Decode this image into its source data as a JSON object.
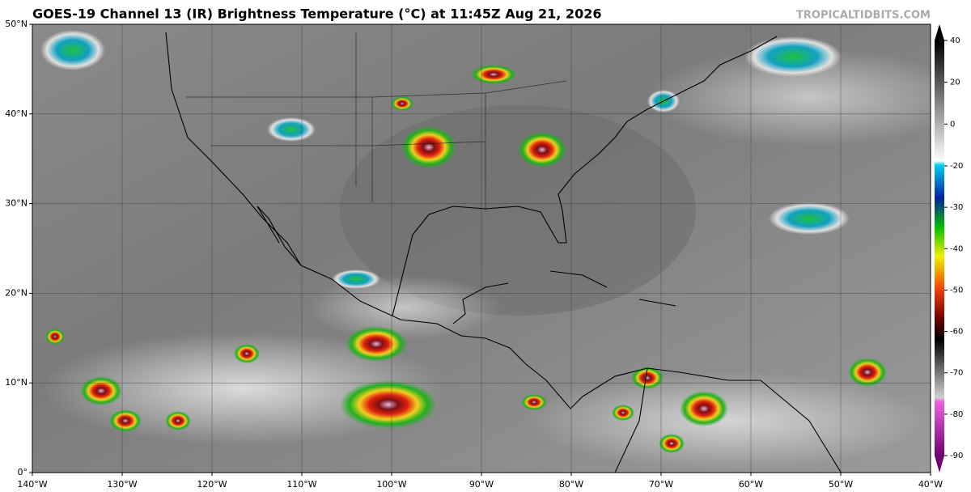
{
  "header": {
    "title": "GOES-19 Channel 13 (IR) Brightness Temperature (°C) at 11:45Z Aug 21, 2026",
    "source": "TROPICALTIDBITS.COM"
  },
  "map": {
    "lon_range": [
      -140,
      -40
    ],
    "lat_range": [
      0,
      50
    ],
    "lon_ticks": [
      {
        "value": -140,
        "label": "140°W"
      },
      {
        "value": -130,
        "label": "130°W"
      },
      {
        "value": -120,
        "label": "120°W"
      },
      {
        "value": -110,
        "label": "110°W"
      },
      {
        "value": -100,
        "label": "100°W"
      },
      {
        "value": -90,
        "label": "90°W"
      },
      {
        "value": -80,
        "label": "80°W"
      },
      {
        "value": -70,
        "label": "70°W"
      },
      {
        "value": -60,
        "label": "60°W"
      },
      {
        "value": -50,
        "label": "50°W"
      },
      {
        "value": -40,
        "label": "40°W"
      }
    ],
    "lat_ticks": [
      {
        "value": 0,
        "label": "0°"
      },
      {
        "value": 10,
        "label": "10°N"
      },
      {
        "value": 20,
        "label": "20°N"
      },
      {
        "value": 30,
        "label": "30°N"
      },
      {
        "value": 40,
        "label": "40°N"
      },
      {
        "value": 50,
        "label": "50°N"
      }
    ]
  },
  "colorbar": {
    "range": [
      -90,
      40
    ],
    "ticks": [
      40,
      20,
      0,
      -20,
      -30,
      -40,
      -50,
      -60,
      -70,
      -80,
      -90
    ]
  }
}
